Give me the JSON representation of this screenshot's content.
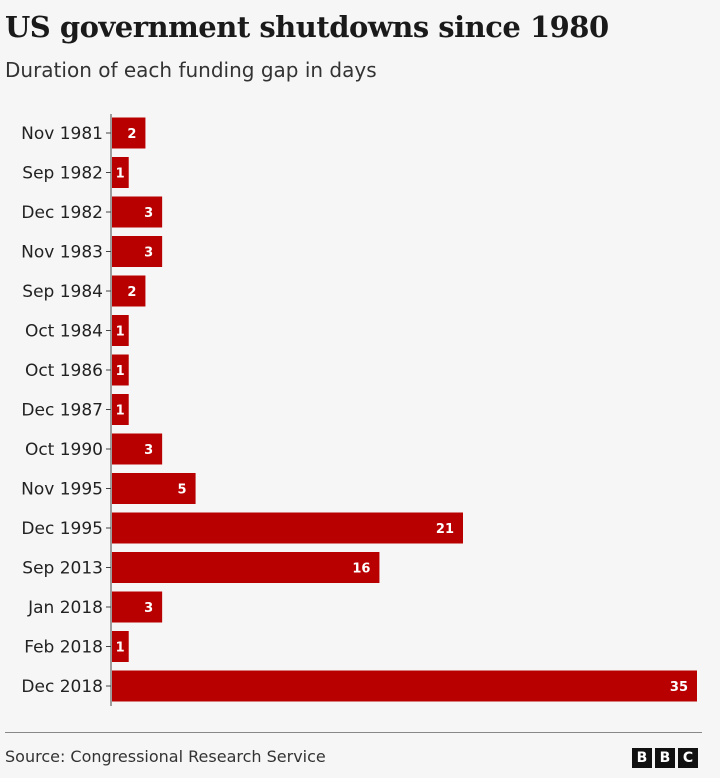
{
  "chart_data": {
    "type": "bar",
    "orientation": "horizontal",
    "title": "US government shutdowns since 1980",
    "subtitle": "Duration of each funding gap in days",
    "categories": [
      "Nov 1981",
      "Sep 1982",
      "Dec 1982",
      "Nov 1983",
      "Sep 1984",
      "Oct 1984",
      "Oct 1986",
      "Dec 1987",
      "Oct 1990",
      "Nov 1995",
      "Dec 1995",
      "Sep 2013",
      "Jan 2018",
      "Feb 2018",
      "Dec 2018"
    ],
    "values": [
      2,
      1,
      3,
      3,
      2,
      1,
      1,
      1,
      3,
      5,
      21,
      16,
      3,
      1,
      35
    ],
    "xlim": [
      0,
      35
    ],
    "xlabel": "",
    "ylabel": "",
    "grid": false,
    "bar_color": "#b80000",
    "source": "Source: Congressional Research Service"
  },
  "logo": [
    "B",
    "B",
    "C"
  ]
}
